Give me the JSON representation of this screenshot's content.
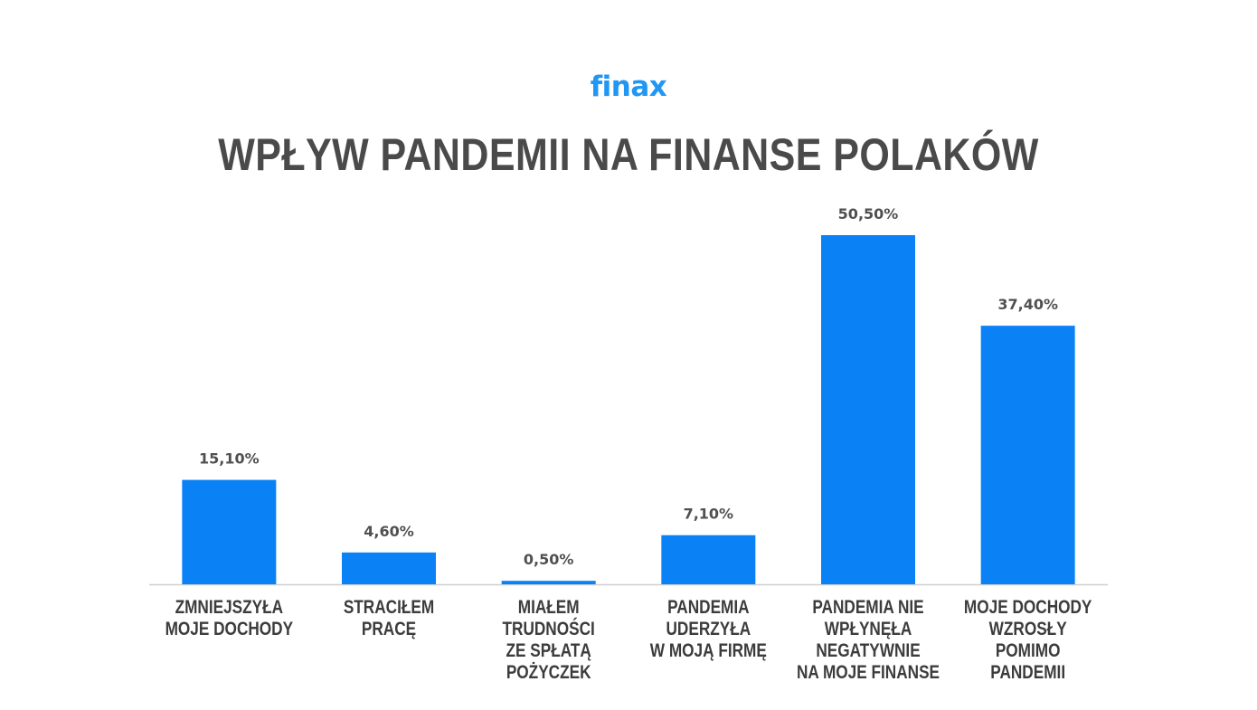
{
  "logo": "finax",
  "colors": {
    "bar": "#0a82f5",
    "axis": "#cfcfcf",
    "logo": "#2196f3",
    "title": "#4a4a4a"
  },
  "chart_data": {
    "type": "bar",
    "title": "WPŁYW PANDEMII NA FINANSE POLAKÓW",
    "categories": [
      [
        "ZMNIEJSZYŁA",
        "MOJE DOCHODY"
      ],
      [
        "STRACIŁEM",
        "PRACĘ"
      ],
      [
        "MIAŁEM",
        "TRUDNOŚCI",
        "ZE SPŁATĄ",
        "POŻYCZEK"
      ],
      [
        "PANDEMIA",
        "UDERZYŁA",
        "W MOJĄ FIRMĘ"
      ],
      [
        "PANDEMIA NIE",
        "WPŁYNĘŁA",
        "NEGATYWNIE",
        "NA MOJE FINANSE"
      ],
      [
        "MOJE DOCHODY",
        "WZROSŁY",
        "POMIMO",
        "PANDEMII"
      ]
    ],
    "values": [
      15.1,
      4.6,
      0.5,
      7.1,
      50.5,
      37.4
    ],
    "value_labels": [
      "15,10%",
      "4,60%",
      "0,50%",
      "7,10%",
      "50,50%",
      "37,40%"
    ],
    "unit": "%",
    "ylim": [
      0,
      50.5
    ],
    "grid": false,
    "legend": "none"
  }
}
